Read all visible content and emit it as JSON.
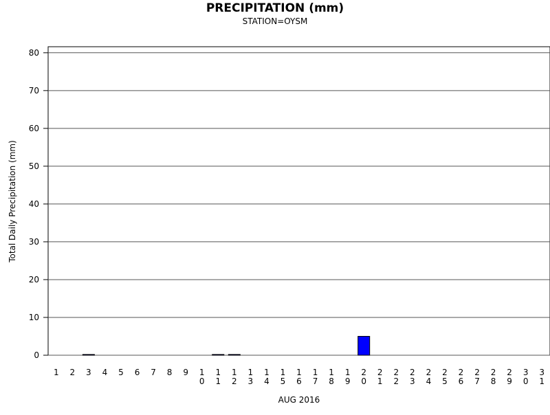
{
  "chart_data": {
    "type": "bar",
    "title": "PRECIPITATION (mm)",
    "subtitle": "STATION=OYSM",
    "x_label": "AUG 2016",
    "y_label": "Total Daily Precipitation (mm)",
    "categories": [
      "1",
      "2",
      "3",
      "4",
      "5",
      "6",
      "7",
      "8",
      "9",
      "10",
      "11",
      "12",
      "13",
      "14",
      "15",
      "16",
      "17",
      "18",
      "19",
      "20",
      "21",
      "22",
      "23",
      "24",
      "25",
      "26",
      "27",
      "28",
      "29",
      "30",
      "31"
    ],
    "values": [
      0,
      0,
      0.2,
      0,
      0,
      0,
      0,
      0,
      0,
      0,
      0.2,
      0.2,
      0,
      0,
      0,
      0,
      0,
      0,
      0,
      5,
      0,
      0,
      0,
      0,
      0,
      0,
      0,
      0,
      0,
      0,
      0
    ],
    "color": "#0000ff",
    "ylim": [
      0,
      81.6
    ],
    "yticks": [
      0,
      10,
      20,
      30,
      40,
      50,
      60,
      70,
      80
    ],
    "grid": true
  }
}
